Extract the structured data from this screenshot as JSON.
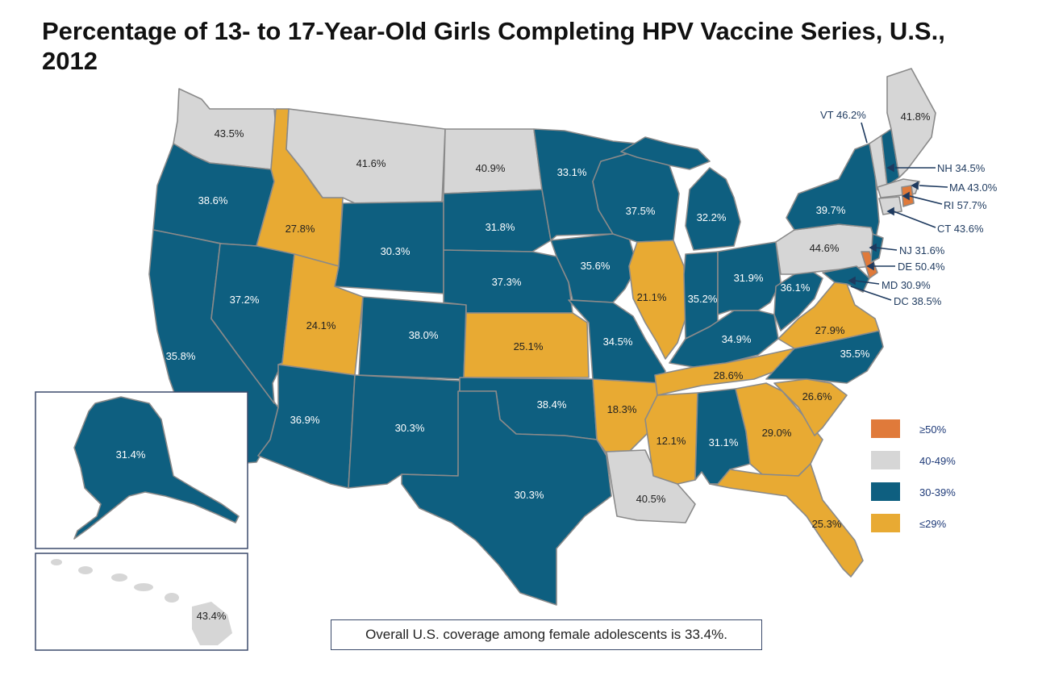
{
  "title": "Percentage of 13- to 17-Year-Old Girls Completing HPV Vaccine Series, U.S., 2012",
  "colors": {
    "ge50": "#e07a3a",
    "c40_49": "#d6d6d6",
    "c30_39": "#0e5f80",
    "le29": "#e8aa33",
    "border": "#8a8a8a"
  },
  "legend": [
    {
      "label": "≥50%",
      "class": "ge50"
    },
    {
      "label": "40-49%",
      "class": "c40_49"
    },
    {
      "label": "30-39%",
      "class": "c30_39"
    },
    {
      "label": "≤29%",
      "class": "le29"
    }
  ],
  "states": {
    "WA": {
      "value": "43.5%",
      "class": "c40_49"
    },
    "OR": {
      "value": "38.6%",
      "class": "c30_39"
    },
    "CA": {
      "value": "35.8%",
      "class": "c30_39"
    },
    "ID": {
      "value": "27.8%",
      "class": "le29"
    },
    "NV": {
      "value": "37.2%",
      "class": "c30_39"
    },
    "MT": {
      "value": "41.6%",
      "class": "c40_49"
    },
    "WY": {
      "value": "30.3%",
      "class": "c30_39"
    },
    "UT": {
      "value": "24.1%",
      "class": "le29"
    },
    "AZ": {
      "value": "36.9%",
      "class": "c30_39"
    },
    "CO": {
      "value": "38.0%",
      "class": "c30_39"
    },
    "NM": {
      "value": "30.3%",
      "class": "c30_39"
    },
    "ND": {
      "value": "40.9%",
      "class": "c40_49"
    },
    "SD": {
      "value": "31.8%",
      "class": "c30_39"
    },
    "NE": {
      "value": "37.3%",
      "class": "c30_39"
    },
    "KS": {
      "value": "25.1%",
      "class": "le29"
    },
    "OK": {
      "value": "38.4%",
      "class": "c30_39"
    },
    "TX": {
      "value": "30.3%",
      "class": "c30_39"
    },
    "MN": {
      "value": "33.1%",
      "class": "c30_39"
    },
    "IA": {
      "value": "35.6%",
      "class": "c30_39"
    },
    "MO": {
      "value": "34.5%",
      "class": "c30_39"
    },
    "AR": {
      "value": "18.3%",
      "class": "le29"
    },
    "LA": {
      "value": "40.5%",
      "class": "c40_49"
    },
    "WI": {
      "value": "37.5%",
      "class": "c30_39"
    },
    "IL": {
      "value": "21.1%",
      "class": "le29"
    },
    "MI": {
      "value": "32.2%",
      "class": "c30_39"
    },
    "IN": {
      "value": "35.2%",
      "class": "c30_39"
    },
    "OH": {
      "value": "31.9%",
      "class": "c30_39"
    },
    "KY": {
      "value": "34.9%",
      "class": "c30_39"
    },
    "TN": {
      "value": "28.6%",
      "class": "le29"
    },
    "MS": {
      "value": "12.1%",
      "class": "le29"
    },
    "AL": {
      "value": "31.1%",
      "class": "c30_39"
    },
    "GA": {
      "value": "29.0%",
      "class": "le29"
    },
    "FL": {
      "value": "25.3%",
      "class": "le29"
    },
    "SC": {
      "value": "26.6%",
      "class": "le29"
    },
    "NC": {
      "value": "35.5%",
      "class": "c30_39"
    },
    "VA": {
      "value": "27.9%",
      "class": "le29"
    },
    "WV": {
      "value": "36.1%",
      "class": "c30_39"
    },
    "PA": {
      "value": "44.6%",
      "class": "c40_49"
    },
    "NY": {
      "value": "39.7%",
      "class": "c30_39"
    },
    "ME": {
      "value": "41.8%",
      "class": "c40_49"
    },
    "AK": {
      "value": "31.4%",
      "class": "c30_39"
    },
    "HI": {
      "value": "43.4%",
      "class": "c40_49"
    },
    "VT": {
      "value": "VT 46.2%",
      "class": "c40_49"
    },
    "NH": {
      "value": "NH 34.5%",
      "class": "c30_39"
    },
    "MA": {
      "value": "MA 43.0%",
      "class": "c40_49"
    },
    "RI": {
      "value": "RI 57.7%",
      "class": "ge50"
    },
    "CT": {
      "value": "CT 43.6%",
      "class": "c40_49"
    },
    "NJ": {
      "value": "NJ 31.6%",
      "class": "c30_39"
    },
    "DE": {
      "value": "DE 50.4%",
      "class": "ge50"
    },
    "MD": {
      "value": "MD 30.9%",
      "class": "c30_39"
    },
    "DC": {
      "value": "DC 38.5%",
      "class": "c30_39"
    }
  },
  "footnote": "Overall U.S. coverage among female adolescents is 33.4%."
}
